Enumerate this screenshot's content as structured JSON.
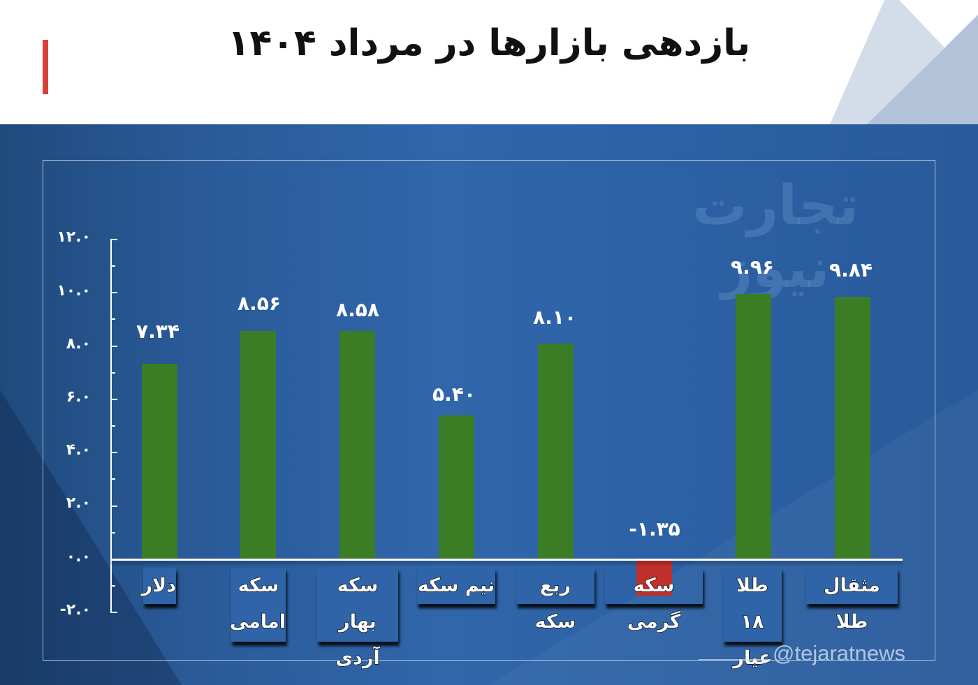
{
  "header": {
    "title": "بازدهی بازارها در مرداد ۱۴۰۴",
    "accent_color": "#d9403a"
  },
  "watermark": {
    "logo_text": "تجارت نیوز",
    "handle": "@tejaratnews"
  },
  "chart_data": {
    "type": "bar",
    "title": "بازدهی بازارها در مرداد ۱۴۰۴",
    "xlabel": "",
    "ylabel": "",
    "ylim": [
      -2,
      12
    ],
    "grid": false,
    "legend": null,
    "yticks": [
      -2.0,
      0.0,
      2.0,
      4.0,
      6.0,
      8.0,
      10.0,
      12.0
    ],
    "ytick_labels": [
      "-۲.۰",
      "۰.۰",
      "۲.۰",
      "۴.۰",
      "۶.۰",
      "۸.۰",
      "۱۰.۰",
      "۱۲.۰"
    ],
    "categories": [
      "دلار",
      "سکه امامی",
      "سکه بهار آزدی",
      "نیم سکه",
      "ربع سکه",
      "سکه گرمی",
      "طلا ۱۸ عیار",
      "مثقال طلا"
    ],
    "values": [
      7.34,
      8.56,
      8.58,
      5.4,
      8.1,
      -1.35,
      9.96,
      9.84
    ],
    "value_labels": [
      "۷.۳۴",
      "۸.۵۶",
      "۸.۵۸",
      "۵.۴۰",
      "۸.۱۰",
      "-۱.۳۵",
      "۹.۹۶",
      "۹.۸۴"
    ],
    "colors": {
      "positive": "#3a7d25",
      "negative": "#c0302a",
      "background": "#2d62a6"
    }
  },
  "axis": {
    "labels": [
      "۱۲.۰",
      "۱۰.۰",
      "۸.۰",
      "۶.۰",
      "۴.۰",
      "۲.۰",
      "۰.۰",
      "-۲.۰"
    ]
  },
  "bars": [
    {
      "cat_line1": "دلار",
      "cat_line2": "",
      "label": "۷.۳۴"
    },
    {
      "cat_line1": "سکه",
      "cat_line2": "امامی",
      "label": "۸.۵۶"
    },
    {
      "cat_line1": "سکه بهار",
      "cat_line2": "آزدی",
      "label": "۸.۵۸"
    },
    {
      "cat_line1": "نیم سکه",
      "cat_line2": "",
      "label": "۵.۴۰"
    },
    {
      "cat_line1": "ربع سکه",
      "cat_line2": "",
      "label": "۸.۱۰"
    },
    {
      "cat_line1": "سکه گرمی",
      "cat_line2": "",
      "label": "-۱.۳۵"
    },
    {
      "cat_line1": "طلا ۱۸",
      "cat_line2": "عیار",
      "label": "۹.۹۶"
    },
    {
      "cat_line1": "مثقال طلا",
      "cat_line2": "",
      "label": "۹.۸۴"
    }
  ]
}
